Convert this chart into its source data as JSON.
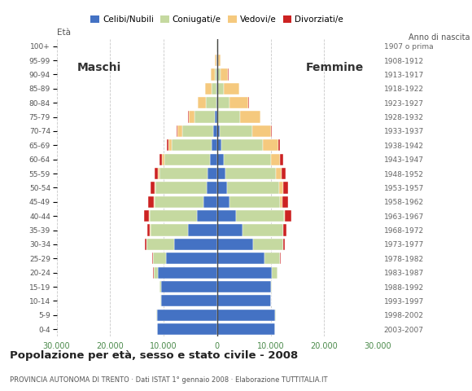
{
  "age_groups": [
    "0-4",
    "5-9",
    "10-14",
    "15-19",
    "20-24",
    "25-29",
    "30-34",
    "35-39",
    "40-44",
    "45-49",
    "50-54",
    "55-59",
    "60-64",
    "65-69",
    "70-74",
    "75-79",
    "80-84",
    "85-89",
    "90-94",
    "95-99",
    "100+"
  ],
  "birth_years": [
    "2003-2007",
    "1998-2002",
    "1993-1997",
    "1988-1992",
    "1983-1987",
    "1978-1982",
    "1973-1977",
    "1968-1972",
    "1963-1967",
    "1958-1962",
    "1953-1957",
    "1948-1952",
    "1943-1947",
    "1938-1942",
    "1933-1937",
    "1928-1932",
    "1923-1927",
    "1918-1922",
    "1913-1917",
    "1908-1912",
    "1907 o prima"
  ],
  "males": {
    "celibe": [
      11200,
      11300,
      10500,
      10500,
      11000,
      9500,
      8000,
      5500,
      3800,
      2500,
      2000,
      1800,
      1400,
      1000,
      700,
      400,
      150,
      100,
      80,
      50,
      30
    ],
    "coniugato": [
      30,
      40,
      60,
      200,
      900,
      2500,
      5200,
      7000,
      8800,
      9200,
      9500,
      9000,
      8500,
      7500,
      5800,
      3800,
      2000,
      900,
      350,
      100,
      50
    ],
    "vedovo": [
      2,
      2,
      3,
      5,
      10,
      20,
      40,
      70,
      100,
      130,
      200,
      280,
      400,
      600,
      900,
      1100,
      1400,
      1200,
      700,
      250,
      100
    ],
    "divorziato": [
      2,
      3,
      5,
      8,
      20,
      60,
      200,
      500,
      1000,
      1000,
      800,
      600,
      400,
      250,
      180,
      100,
      50,
      20,
      10,
      5,
      3
    ]
  },
  "females": {
    "nubile": [
      10800,
      10900,
      10000,
      10000,
      10200,
      8800,
      6800,
      4800,
      3500,
      2300,
      1800,
      1500,
      1200,
      800,
      500,
      250,
      150,
      100,
      80,
      40,
      20
    ],
    "coniugata": [
      25,
      30,
      50,
      250,
      1100,
      3000,
      5500,
      7500,
      9000,
      9500,
      9800,
      9500,
      8800,
      7800,
      6000,
      4000,
      2200,
      1200,
      500,
      150,
      60
    ],
    "vedova": [
      2,
      2,
      3,
      5,
      10,
      20,
      50,
      100,
      200,
      400,
      700,
      1100,
      1800,
      2800,
      3500,
      3800,
      3500,
      2800,
      1500,
      500,
      150
    ],
    "divorziata": [
      2,
      3,
      5,
      10,
      30,
      80,
      250,
      600,
      1100,
      1100,
      900,
      700,
      500,
      300,
      200,
      100,
      50,
      20,
      10,
      5,
      3
    ]
  },
  "colors": {
    "celibe": "#4472c4",
    "coniugato": "#c5d9a0",
    "vedovo": "#f5c97e",
    "divorziato": "#cc2222"
  },
  "xlim": 30000,
  "xtick_positions": [
    -30000,
    -20000,
    -10000,
    0,
    10000,
    20000,
    30000
  ],
  "xtick_labels": [
    "30.000",
    "20.000",
    "10.000",
    "0",
    "10.000",
    "20.000",
    "30.000"
  ],
  "title": "Popolazione per età, sesso e stato civile - 2008",
  "subtitle": "PROVINCIA AUTONOMA DI TRENTO · Dati ISTAT 1° gennaio 2008 · Elaborazione TUTTITALIA.IT",
  "background_color": "#ffffff",
  "grid_color": "#bbbbbb",
  "legend_labels": [
    "Celibi/Nubili",
    "Coniugati/e",
    "Vedovi/e",
    "Divorziati/e"
  ],
  "label_maschi": "Maschi",
  "label_femmine": "Femmine",
  "label_eta": "Età",
  "label_anno": "Anno di nascita"
}
